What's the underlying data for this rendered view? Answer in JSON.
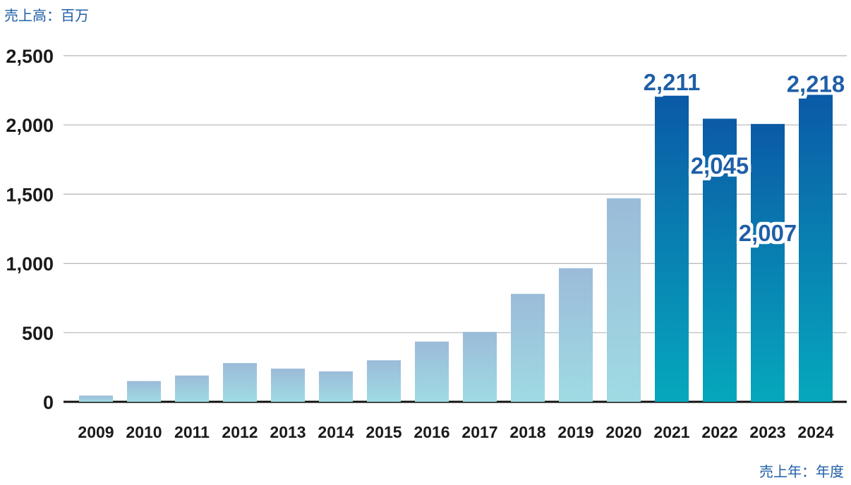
{
  "chart_data": {
    "type": "bar",
    "ylabel": "売上高：百万",
    "xlabel": "売上年：年度",
    "categories": [
      "2009",
      "2010",
      "2011",
      "2012",
      "2013",
      "2014",
      "2015",
      "2016",
      "2017",
      "2018",
      "2019",
      "2020",
      "2021",
      "2022",
      "2023",
      "2024"
    ],
    "values": [
      45,
      150,
      190,
      280,
      240,
      220,
      300,
      435,
      505,
      780,
      965,
      1470,
      2211,
      2045,
      2007,
      2218
    ],
    "data_labels": {
      "2021": "2,211",
      "2022": "2,045",
      "2023": "2,007",
      "2024": "2,218"
    },
    "ylim": [
      0,
      2500
    ],
    "yticks": [
      0,
      500,
      1000,
      1500,
      2000,
      2500
    ],
    "ytick_labels": [
      "0",
      "500",
      "1,000",
      "1,500",
      "2,000",
      "2,500"
    ],
    "grid": true,
    "colors": {
      "light_top": "#9bbbd9",
      "light_bottom": "#9fdbe3",
      "dark_top": "#0b5aa6",
      "dark_bottom": "#06a8bd",
      "label_text": "#1a5ea8",
      "gridline": "#b5b5b5",
      "axis": "#111111"
    }
  }
}
